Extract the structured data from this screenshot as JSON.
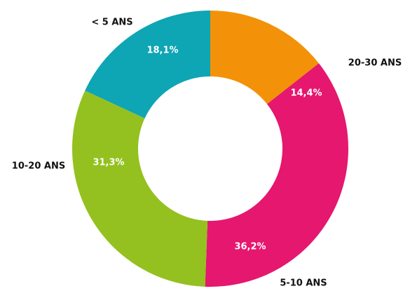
{
  "chart_data": {
    "type": "donut",
    "categories": [
      "20-30 ANS",
      "5-10 ANS",
      "10-20 ANS",
      "< 5 ANS"
    ],
    "values": [
      14.4,
      36.2,
      31.3,
      18.1
    ],
    "value_labels": [
      "14,4%",
      "36,2%",
      "31,3%",
      "18,1%"
    ],
    "colors": [
      "#f39208",
      "#e5176f",
      "#94c11f",
      "#0ea5b5"
    ]
  }
}
